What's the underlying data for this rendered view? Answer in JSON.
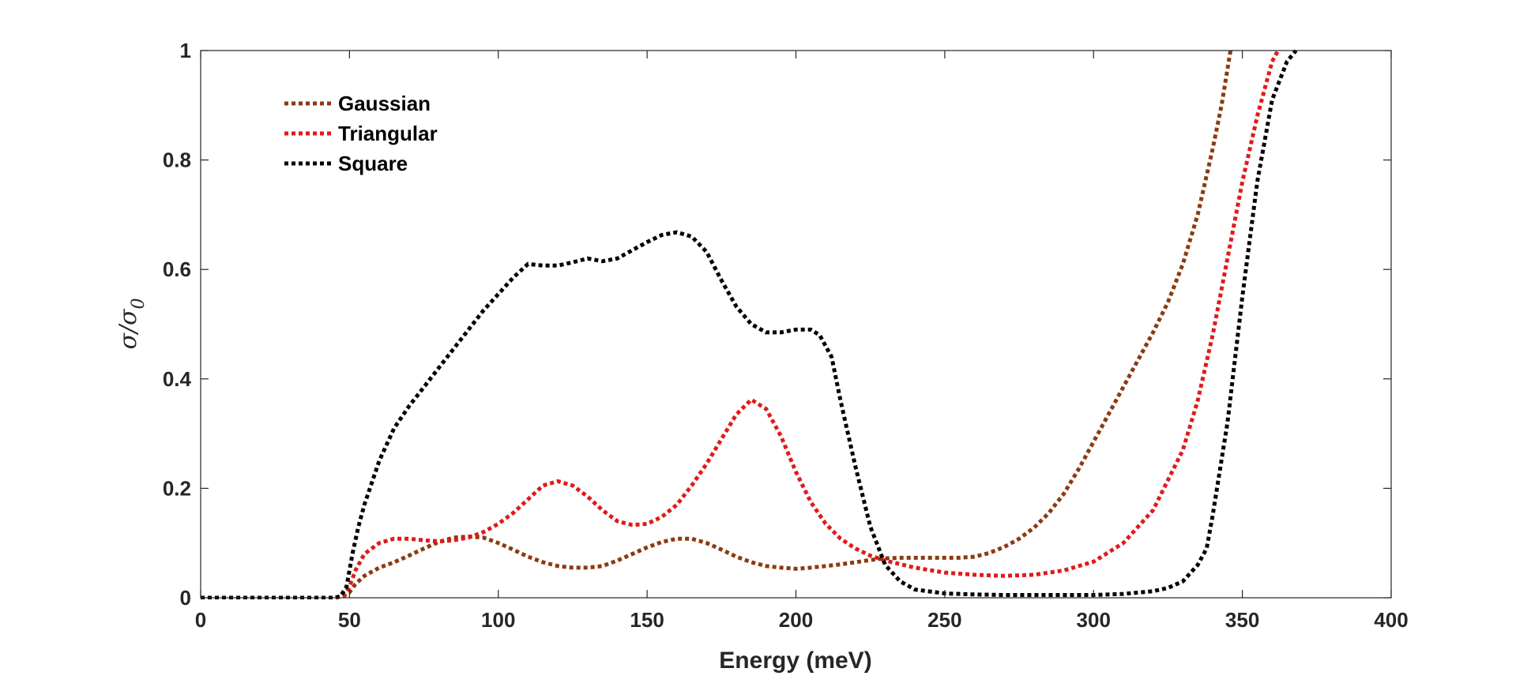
{
  "chart_data": {
    "type": "line",
    "title": "",
    "xlabel": "Energy (meV)",
    "ylabel": {
      "main": "σ/σ",
      "sub": "0"
    },
    "xlim": [
      0,
      400
    ],
    "ylim": [
      0,
      1
    ],
    "xticks": [
      "0",
      "50",
      "100",
      "150",
      "200",
      "250",
      "300",
      "350",
      "400"
    ],
    "yticks": [
      "0",
      "0.2",
      "0.4",
      "0.6",
      "0.8",
      "1"
    ],
    "grid": false,
    "legend_position": "top-left",
    "line_style": "dotted",
    "series": [
      {
        "name": "Gaussian",
        "color": "#8b3a0f",
        "x": [
          0,
          10,
          20,
          30,
          40,
          45,
          48,
          50,
          52,
          55,
          60,
          65,
          70,
          75,
          80,
          85,
          90,
          95,
          100,
          105,
          110,
          115,
          120,
          125,
          130,
          135,
          140,
          145,
          150,
          155,
          160,
          165,
          170,
          175,
          180,
          185,
          190,
          195,
          200,
          205,
          210,
          215,
          220,
          225,
          230,
          235,
          240,
          245,
          250,
          255,
          260,
          265,
          270,
          275,
          280,
          285,
          290,
          295,
          300,
          305,
          310,
          315,
          320,
          325,
          330,
          335,
          340,
          343,
          346
        ],
        "y": [
          0,
          0,
          0,
          0,
          0,
          0,
          0.003,
          0.01,
          0.025,
          0.04,
          0.055,
          0.065,
          0.077,
          0.09,
          0.102,
          0.11,
          0.112,
          0.11,
          0.1,
          0.088,
          0.075,
          0.065,
          0.058,
          0.055,
          0.055,
          0.058,
          0.068,
          0.08,
          0.092,
          0.102,
          0.108,
          0.108,
          0.1,
          0.088,
          0.075,
          0.065,
          0.058,
          0.055,
          0.053,
          0.055,
          0.058,
          0.061,
          0.065,
          0.069,
          0.072,
          0.073,
          0.073,
          0.073,
          0.073,
          0.073,
          0.075,
          0.082,
          0.093,
          0.108,
          0.128,
          0.155,
          0.19,
          0.235,
          0.285,
          0.335,
          0.385,
          0.435,
          0.485,
          0.54,
          0.61,
          0.7,
          0.82,
          0.9,
          1.0
        ]
      },
      {
        "name": "Triangular",
        "color": "#e01a1a",
        "x": [
          0,
          10,
          20,
          30,
          40,
          45,
          48,
          50,
          52,
          55,
          60,
          65,
          70,
          75,
          80,
          85,
          90,
          95,
          100,
          105,
          110,
          115,
          120,
          125,
          130,
          135,
          140,
          145,
          150,
          155,
          160,
          165,
          170,
          175,
          180,
          185,
          190,
          195,
          200,
          205,
          210,
          215,
          220,
          225,
          230,
          240,
          250,
          260,
          270,
          280,
          290,
          300,
          310,
          320,
          330,
          335,
          340,
          345,
          350,
          355,
          360,
          362
        ],
        "y": [
          0,
          0,
          0,
          0,
          0,
          0,
          0.003,
          0.02,
          0.05,
          0.08,
          0.1,
          0.108,
          0.108,
          0.105,
          0.103,
          0.105,
          0.11,
          0.12,
          0.135,
          0.155,
          0.18,
          0.205,
          0.213,
          0.205,
          0.185,
          0.16,
          0.14,
          0.133,
          0.135,
          0.148,
          0.17,
          0.205,
          0.245,
          0.29,
          0.335,
          0.362,
          0.345,
          0.295,
          0.23,
          0.175,
          0.135,
          0.108,
          0.09,
          0.077,
          0.068,
          0.055,
          0.046,
          0.042,
          0.04,
          0.042,
          0.05,
          0.066,
          0.1,
          0.16,
          0.27,
          0.36,
          0.48,
          0.62,
          0.76,
          0.88,
          0.98,
          1.0
        ]
      },
      {
        "name": "Square",
        "color": "#000000",
        "x": [
          0,
          10,
          20,
          30,
          40,
          45,
          47,
          49,
          51,
          53,
          55,
          60,
          65,
          70,
          75,
          80,
          85,
          90,
          95,
          100,
          105,
          108,
          110,
          115,
          120,
          125,
          130,
          135,
          140,
          145,
          150,
          155,
          160,
          165,
          170,
          175,
          180,
          185,
          190,
          195,
          200,
          205,
          208,
          212,
          215,
          220,
          225,
          230,
          235,
          240,
          250,
          260,
          270,
          280,
          290,
          300,
          310,
          320,
          325,
          330,
          335,
          338,
          340,
          345,
          350,
          355,
          360,
          365,
          368
        ],
        "y": [
          0,
          0,
          0,
          0,
          0,
          0,
          0.003,
          0.02,
          0.08,
          0.13,
          0.17,
          0.25,
          0.31,
          0.35,
          0.385,
          0.42,
          0.455,
          0.49,
          0.525,
          0.555,
          0.585,
          0.6,
          0.61,
          0.607,
          0.607,
          0.613,
          0.62,
          0.615,
          0.62,
          0.635,
          0.65,
          0.663,
          0.668,
          0.66,
          0.632,
          0.58,
          0.532,
          0.5,
          0.485,
          0.485,
          0.49,
          0.49,
          0.48,
          0.44,
          0.36,
          0.24,
          0.13,
          0.06,
          0.03,
          0.015,
          0.008,
          0.006,
          0.005,
          0.005,
          0.005,
          0.005,
          0.007,
          0.012,
          0.018,
          0.03,
          0.06,
          0.09,
          0.15,
          0.32,
          0.55,
          0.76,
          0.91,
          0.98,
          1.0
        ]
      }
    ]
  }
}
